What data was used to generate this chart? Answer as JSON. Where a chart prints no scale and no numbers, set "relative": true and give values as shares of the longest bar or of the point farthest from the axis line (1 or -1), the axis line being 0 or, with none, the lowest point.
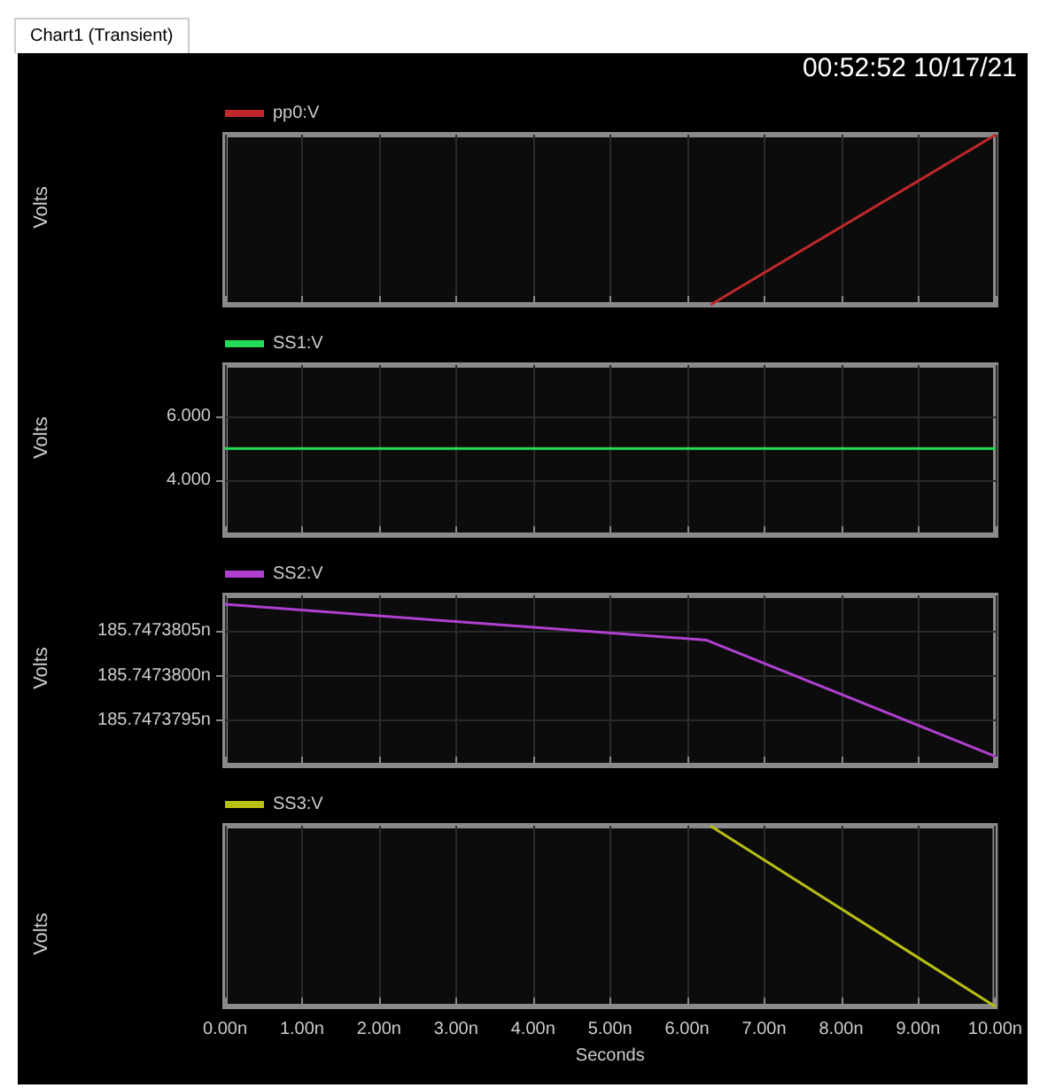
{
  "chart_data": [
    {
      "type": "line",
      "annotations": [
        "Chart1 (Transient)",
        "00:52:52 10/17/21"
      ],
      "ylabel": "Volts",
      "relative": true,
      "xlim": [
        0,
        10
      ],
      "xticks": [
        {
          "value": 0,
          "label": null
        },
        {
          "value": 1,
          "label": null
        },
        {
          "value": 2,
          "label": null
        },
        {
          "value": 3,
          "label": null
        },
        {
          "value": 4,
          "label": null
        },
        {
          "value": 5,
          "label": null
        },
        {
          "value": 6,
          "label": null
        },
        {
          "value": 7,
          "label": null
        },
        {
          "value": 8,
          "label": null
        },
        {
          "value": 9,
          "label": null
        },
        {
          "value": 10,
          "label": null
        }
      ],
      "tick_labels": false,
      "grid": true,
      "legend": "top left",
      "series": [
        {
          "name": "pp0:V",
          "color": "#c0282a",
          "x": [
            6.3,
            10
          ],
          "values": [
            0,
            1
          ]
        }
      ]
    },
    {
      "type": "line",
      "ylabel": "Volts",
      "xlim": [
        0,
        10
      ],
      "xticks": [
        {
          "value": 0,
          "label": null
        },
        {
          "value": 1,
          "label": null
        },
        {
          "value": 2,
          "label": null
        },
        {
          "value": 3,
          "label": null
        },
        {
          "value": 4,
          "label": null
        },
        {
          "value": 5,
          "label": null
        },
        {
          "value": 6,
          "label": null
        },
        {
          "value": 7,
          "label": null
        },
        {
          "value": 8,
          "label": null
        },
        {
          "value": 9,
          "label": null
        },
        {
          "value": 10,
          "label": null
        }
      ],
      "ylim": [
        2.3,
        7.6
      ],
      "yticks": [
        {
          "value": 4,
          "label": "4.000"
        },
        {
          "value": 6,
          "label": "6.000"
        }
      ],
      "tick_labels": "y",
      "grid": true,
      "legend": "top left",
      "series": [
        {
          "name": "SS1:V",
          "color": "#22dd55",
          "x": [
            0,
            10
          ],
          "values": [
            5,
            5
          ]
        }
      ]
    },
    {
      "type": "line",
      "ylabel": "Volts",
      "xlim": [
        0,
        10
      ],
      "xticks": [
        {
          "value": 0,
          "label": null
        },
        {
          "value": 1,
          "label": null
        },
        {
          "value": 2,
          "label": null
        },
        {
          "value": 3,
          "label": null
        },
        {
          "value": 4,
          "label": null
        },
        {
          "value": 5,
          "label": null
        },
        {
          "value": 6,
          "label": null
        },
        {
          "value": 7,
          "label": null
        },
        {
          "value": 8,
          "label": null
        },
        {
          "value": 9,
          "label": null
        },
        {
          "value": 10,
          "label": null
        }
      ],
      "ylim": [
        185.747379,
        185.7473809
      ],
      "yticks": [
        {
          "value": 185.7473795,
          "label": "185.7473795n"
        },
        {
          "value": 185.74738,
          "label": "185.7473800n"
        },
        {
          "value": 185.7473805,
          "label": "185.7473805n"
        }
      ],
      "tick_labels": "y",
      "grid": true,
      "legend": "top left",
      "series": [
        {
          "name": "SS2:V",
          "color": "#b040d0",
          "x": [
            0,
            6.25,
            10
          ],
          "values": [
            185.7473808,
            185.7473804,
            185.7473791
          ]
        }
      ]
    },
    {
      "type": "line",
      "ylabel": "Volts",
      "xlabel": "Seconds",
      "relative": true,
      "xlim": [
        0,
        10
      ],
      "xticks": [
        {
          "value": 0,
          "label": "0.00n"
        },
        {
          "value": 1,
          "label": "1.00n"
        },
        {
          "value": 2,
          "label": "2.00n"
        },
        {
          "value": 3,
          "label": "3.00n"
        },
        {
          "value": 4,
          "label": "4.00n"
        },
        {
          "value": 5,
          "label": "5.00n"
        },
        {
          "value": 6,
          "label": "6.00n"
        },
        {
          "value": 7,
          "label": "7.00n"
        },
        {
          "value": 8,
          "label": "8.00n"
        },
        {
          "value": 9,
          "label": "9.00n"
        },
        {
          "value": 10,
          "label": "10.00n"
        }
      ],
      "tick_labels": "x",
      "grid": true,
      "legend": "top left",
      "series": [
        {
          "name": "SS3:V",
          "color": "#b8c010",
          "x": [
            6.3,
            10
          ],
          "values": [
            1,
            0
          ]
        }
      ]
    }
  ]
}
